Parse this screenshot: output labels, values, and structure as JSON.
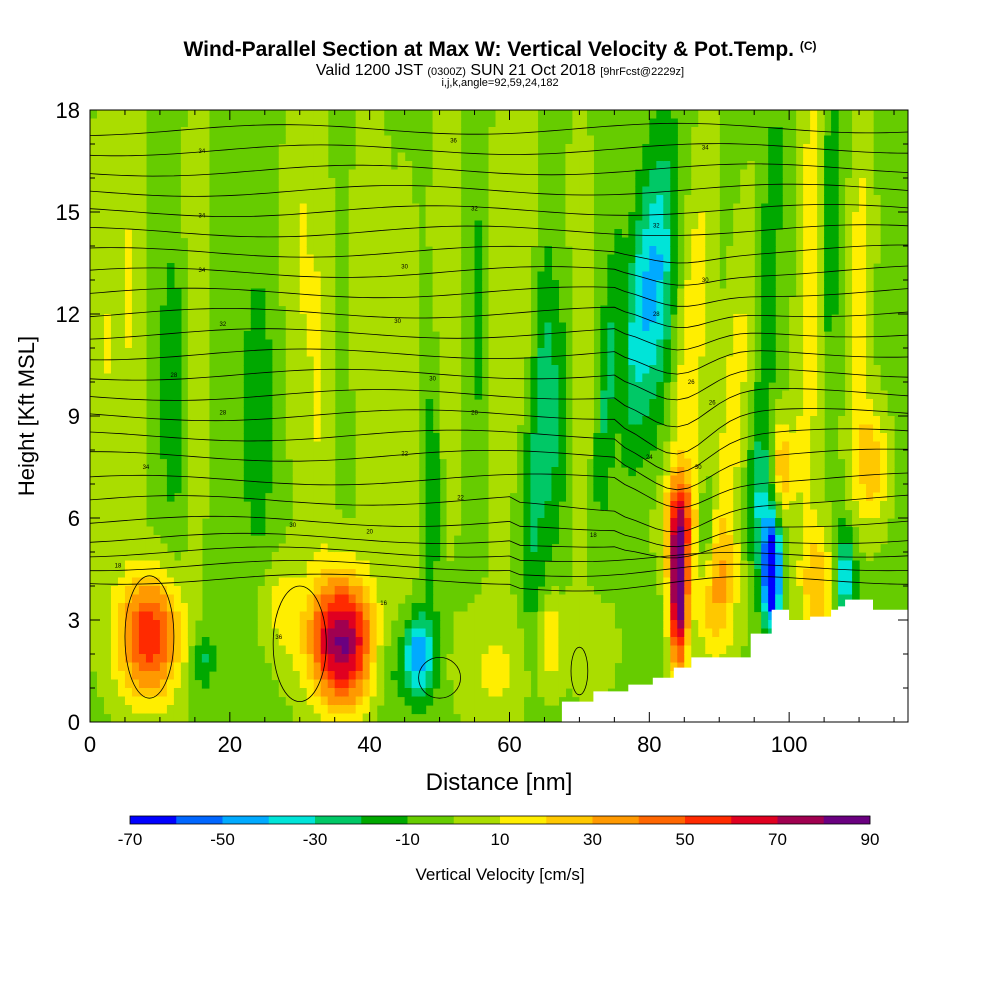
{
  "title": {
    "main": "Wind-Parallel Section at Max W: Vertical Velocity & Pot.Temp.",
    "main_mark": "(C)",
    "valid_prefix": "Valid 1200 JST",
    "valid_utc": "(0300Z)",
    "valid_date": "SUN 21 Oct 2018",
    "fcst": "[9hrFcst@2229z]",
    "indices": "i,j,k,angle=92,59,24,182"
  },
  "chart_data": {
    "type": "heatmap",
    "xlabel": "Distance [nm]",
    "ylabel": "Height [Kft MSL]",
    "xlim": [
      0,
      117
    ],
    "ylim": [
      0,
      18
    ],
    "xticks": [
      "0",
      "20",
      "40",
      "60",
      "80",
      "100"
    ],
    "yticks": [
      "0",
      "3",
      "6",
      "9",
      "12",
      "15",
      "18"
    ],
    "colorbar": {
      "label": "Vertical Velocity [cm/s]",
      "tick_labels": [
        "-70",
        "-50",
        "-30",
        "-10",
        "10",
        "30",
        "50",
        "70",
        "90"
      ],
      "bounds": [
        -70,
        -60,
        -50,
        -40,
        -30,
        -20,
        -10,
        0,
        10,
        20,
        30,
        40,
        50,
        60,
        70,
        80,
        90
      ],
      "colors": [
        "#0000ff",
        "#0066ff",
        "#00aaff",
        "#00e4d8",
        "#00c866",
        "#00a800",
        "#66cc00",
        "#aadd00",
        "#ffee00",
        "#ffc800",
        "#ff9900",
        "#ff6600",
        "#ff2a00",
        "#e00020",
        "#a00050",
        "#6a0080"
      ]
    },
    "shaded_field": {
      "background_range": "-10 to 0",
      "features": [
        {
          "x": 8.5,
          "z": 2.5,
          "w_peak": 55,
          "sign": "updraft"
        },
        {
          "x": 36.5,
          "z": 2.3,
          "w_peak": 65,
          "sign": "updraft"
        },
        {
          "x": 84.2,
          "z": 3.8,
          "w_peak": 80,
          "sign": "updraft"
        },
        {
          "x": 97.5,
          "z": 4.3,
          "w_peak": -70,
          "sign": "downdraft"
        },
        {
          "x": 81,
          "z": 13,
          "w_peak": -30,
          "sign": "downdraft"
        },
        {
          "x": 47,
          "z": 2,
          "w_peak": -35,
          "sign": "downdraft"
        },
        {
          "x": 108,
          "z": 4.5,
          "w_peak": -35,
          "sign": "downdraft"
        }
      ]
    },
    "theta_contours": {
      "units": "C",
      "label_values": [
        "34",
        "36",
        "34",
        "34",
        "32",
        "32",
        "34",
        "30",
        "30",
        "32",
        "30",
        "28",
        "28",
        "30",
        "26",
        "28",
        "28",
        "26",
        "24",
        "22",
        "30",
        "34",
        "22",
        "30",
        "20",
        "18",
        "18",
        "16",
        "36"
      ]
    },
    "terrain": {
      "x": [
        67.5,
        67.5,
        72,
        72,
        77,
        77,
        80.5,
        80.5,
        83.5,
        83.5,
        86,
        86,
        94.5,
        94.5,
        97.5,
        97.5,
        100,
        100,
        103,
        103,
        106,
        106,
        107,
        107,
        108,
        108,
        109,
        109,
        112,
        112,
        117
      ],
      "z": [
        0.3,
        0.6,
        0.6,
        0.9,
        0.9,
        1.1,
        1.1,
        1.3,
        1.3,
        1.6,
        1.6,
        1.9,
        1.9,
        2.6,
        2.6,
        3.3,
        3.3,
        3.0,
        3.0,
        3.1,
        3.1,
        3.3,
        3.3,
        3.4,
        3.4,
        3.6,
        3.6,
        3.6,
        3.6,
        3.3,
        3.3
      ]
    }
  }
}
